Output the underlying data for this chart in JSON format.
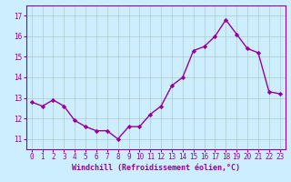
{
  "x": [
    0,
    1,
    2,
    3,
    4,
    5,
    6,
    7,
    8,
    9,
    10,
    11,
    12,
    13,
    14,
    15,
    16,
    17,
    18,
    19,
    20,
    21,
    22,
    23
  ],
  "y": [
    12.8,
    12.6,
    12.9,
    12.6,
    11.9,
    11.6,
    11.4,
    11.4,
    11.0,
    11.6,
    11.6,
    12.2,
    12.6,
    13.6,
    14.0,
    15.3,
    15.5,
    16.0,
    16.8,
    16.1,
    15.4,
    15.2,
    13.3,
    13.2
  ],
  "line_color": "#990099",
  "marker": "D",
  "marker_size": 2.2,
  "linewidth": 1.0,
  "xlabel": "Windchill (Refroidissement éolien,°C)",
  "xlabel_fontsize": 6.0,
  "background_color": "#cceeff",
  "grid_color": "#aacccc",
  "ylim": [
    10.5,
    17.5
  ],
  "xlim": [
    -0.5,
    23.5
  ],
  "yticks": [
    11,
    12,
    13,
    14,
    15,
    16,
    17
  ],
  "xticks": [
    0,
    1,
    2,
    3,
    4,
    5,
    6,
    7,
    8,
    9,
    10,
    11,
    12,
    13,
    14,
    15,
    16,
    17,
    18,
    19,
    20,
    21,
    22,
    23
  ],
  "tick_fontsize": 5.5,
  "tick_color": "#990099",
  "label_color": "#990099",
  "spine_color": "#990099"
}
